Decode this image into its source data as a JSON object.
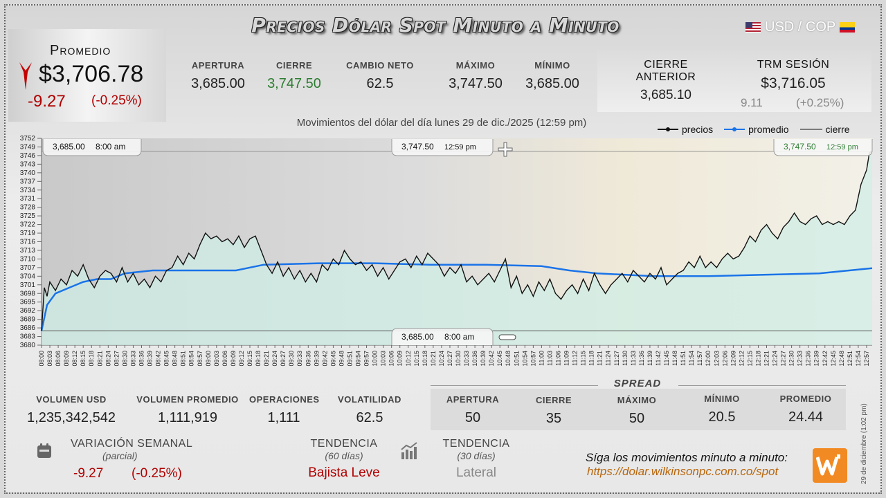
{
  "header": {
    "title": "Precios Dólar Spot Minuto a Minuto",
    "pair": "USD / COP"
  },
  "promedio": {
    "label": "Promedio",
    "value": "$3,706.78",
    "change": "-9.27",
    "change_pct": "(-0.25%)"
  },
  "stats": {
    "apertura": {
      "label": "APERTURA",
      "value": "3,685.00"
    },
    "cierre": {
      "label": "CIERRE",
      "value": "3,747.50"
    },
    "cambio_neto": {
      "label": "CAMBIO NETO",
      "value": "62.5"
    },
    "maximo": {
      "label": "MÁXIMO",
      "value": "3,747.50"
    },
    "minimo": {
      "label": "MÍNIMO",
      "value": "3,685.00"
    },
    "cierre_anterior": {
      "label": "CIERRE ANTERIOR",
      "value": "3,685.10"
    },
    "trm": {
      "label": "TRM SESIÓN",
      "value": "$3,716.05",
      "change": "9.11",
      "change_pct": "(+0.25%)"
    }
  },
  "chart_data": {
    "type": "line",
    "title": "Movimientos del dólar del día lunes 29 de dic./2025 (12:59 pm)",
    "legend": [
      "precios",
      "promedio",
      "cierre"
    ],
    "legend_position": "top-right",
    "ylim": [
      3680,
      3752
    ],
    "yticks": [
      3680,
      3683,
      3686,
      3689,
      3692,
      3695,
      3698,
      3701,
      3704,
      3707,
      3710,
      3713,
      3716,
      3719,
      3722,
      3725,
      3728,
      3731,
      3734,
      3737,
      3740,
      3743,
      3746,
      3749,
      3752
    ],
    "xticks": [
      "08:00",
      "08:03",
      "08:06",
      "08:09",
      "08:12",
      "08:15",
      "08:18",
      "08:21",
      "08:24",
      "08:27",
      "08:30",
      "08:33",
      "08:36",
      "08:39",
      "08:42",
      "08:45",
      "08:48",
      "08:51",
      "08:54",
      "08:57",
      "09:00",
      "09:03",
      "09:06",
      "09:09",
      "09:12",
      "09:15",
      "09:18",
      "09:21",
      "09:24",
      "09:27",
      "09:30",
      "09:33",
      "09:36",
      "09:39",
      "09:42",
      "09:45",
      "09:48",
      "09:51",
      "09:54",
      "09:57",
      "10:00",
      "10:03",
      "10:06",
      "10:09",
      "10:12",
      "10:15",
      "10:18",
      "10:21",
      "10:24",
      "10:27",
      "10:30",
      "10:33",
      "10:36",
      "10:39",
      "10:42",
      "10:45",
      "10:48",
      "10:51",
      "10:54",
      "10:57",
      "11:00",
      "11:03",
      "11:06",
      "11:09",
      "11:12",
      "11:15",
      "11:18",
      "11:21",
      "11:24",
      "11:27",
      "11:30",
      "11:33",
      "11:36",
      "11:39",
      "11:42",
      "11:45",
      "11:48",
      "11:51",
      "11:54",
      "11:57",
      "12:00",
      "12:03",
      "12:06",
      "12:09",
      "12:12",
      "12:15",
      "12:18",
      "12:21",
      "12:24",
      "12:27",
      "12:30",
      "12:33",
      "12:36",
      "12:39",
      "12:42",
      "12:45",
      "12:48",
      "12:51",
      "12:54",
      "12:57"
    ],
    "x_start_min": 0,
    "x_end_min": 299,
    "series": [
      {
        "name": "precios",
        "color": "#111111",
        "points": [
          [
            0,
            3685
          ],
          [
            1,
            3700
          ],
          [
            2,
            3697
          ],
          [
            3,
            3702
          ],
          [
            5,
            3699
          ],
          [
            7,
            3703
          ],
          [
            9,
            3701
          ],
          [
            11,
            3706
          ],
          [
            13,
            3704
          ],
          [
            15,
            3708
          ],
          [
            17,
            3703
          ],
          [
            19,
            3700
          ],
          [
            21,
            3704
          ],
          [
            23,
            3706
          ],
          [
            25,
            3705
          ],
          [
            27,
            3702
          ],
          [
            29,
            3707
          ],
          [
            31,
            3702
          ],
          [
            33,
            3705
          ],
          [
            35,
            3701
          ],
          [
            37,
            3703
          ],
          [
            39,
            3700
          ],
          [
            41,
            3704
          ],
          [
            43,
            3702
          ],
          [
            45,
            3706
          ],
          [
            47,
            3707
          ],
          [
            49,
            3711
          ],
          [
            51,
            3708
          ],
          [
            53,
            3712
          ],
          [
            55,
            3710
          ],
          [
            57,
            3715
          ],
          [
            59,
            3719
          ],
          [
            61,
            3717
          ],
          [
            63,
            3718
          ],
          [
            65,
            3716
          ],
          [
            67,
            3717
          ],
          [
            69,
            3715
          ],
          [
            71,
            3718
          ],
          [
            73,
            3714
          ],
          [
            75,
            3717
          ],
          [
            77,
            3718
          ],
          [
            79,
            3713
          ],
          [
            81,
            3708
          ],
          [
            83,
            3705
          ],
          [
            85,
            3709
          ],
          [
            87,
            3704
          ],
          [
            89,
            3707
          ],
          [
            91,
            3703
          ],
          [
            93,
            3706
          ],
          [
            95,
            3702
          ],
          [
            97,
            3705
          ],
          [
            99,
            3702
          ],
          [
            101,
            3708
          ],
          [
            103,
            3706
          ],
          [
            105,
            3710
          ],
          [
            107,
            3708
          ],
          [
            109,
            3713
          ],
          [
            111,
            3710
          ],
          [
            113,
            3708
          ],
          [
            115,
            3709
          ],
          [
            117,
            3706
          ],
          [
            119,
            3708
          ],
          [
            121,
            3704
          ],
          [
            123,
            3707
          ],
          [
            125,
            3703
          ],
          [
            127,
            3706
          ],
          [
            129,
            3709
          ],
          [
            131,
            3710
          ],
          [
            133,
            3707
          ],
          [
            135,
            3711
          ],
          [
            137,
            3708
          ],
          [
            139,
            3712
          ],
          [
            141,
            3710
          ],
          [
            143,
            3708
          ],
          [
            145,
            3704
          ],
          [
            147,
            3707
          ],
          [
            149,
            3705
          ],
          [
            151,
            3708
          ],
          [
            153,
            3702
          ],
          [
            155,
            3704
          ],
          [
            157,
            3701
          ],
          [
            159,
            3703
          ],
          [
            161,
            3705
          ],
          [
            163,
            3702
          ],
          [
            165,
            3706
          ],
          [
            167,
            3710
          ],
          [
            169,
            3700
          ],
          [
            171,
            3704
          ],
          [
            173,
            3698
          ],
          [
            175,
            3701
          ],
          [
            177,
            3697
          ],
          [
            179,
            3702
          ],
          [
            181,
            3699
          ],
          [
            183,
            3703
          ],
          [
            185,
            3698
          ],
          [
            187,
            3696
          ],
          [
            189,
            3699
          ],
          [
            191,
            3701
          ],
          [
            193,
            3698
          ],
          [
            195,
            3703
          ],
          [
            197,
            3699
          ],
          [
            199,
            3705
          ],
          [
            201,
            3701
          ],
          [
            203,
            3698
          ],
          [
            205,
            3701
          ],
          [
            207,
            3703
          ],
          [
            209,
            3705
          ],
          [
            211,
            3702
          ],
          [
            213,
            3706
          ],
          [
            215,
            3704
          ],
          [
            217,
            3702
          ],
          [
            219,
            3705
          ],
          [
            221,
            3703
          ],
          [
            223,
            3707
          ],
          [
            225,
            3701
          ],
          [
            227,
            3703
          ],
          [
            229,
            3705
          ],
          [
            231,
            3706
          ],
          [
            233,
            3709
          ],
          [
            235,
            3707
          ],
          [
            237,
            3711
          ],
          [
            239,
            3707
          ],
          [
            241,
            3709
          ],
          [
            243,
            3707
          ],
          [
            245,
            3710
          ],
          [
            247,
            3712
          ],
          [
            249,
            3710
          ],
          [
            251,
            3711
          ],
          [
            253,
            3714
          ],
          [
            255,
            3718
          ],
          [
            257,
            3716
          ],
          [
            259,
            3720
          ],
          [
            261,
            3722
          ],
          [
            263,
            3719
          ],
          [
            265,
            3717
          ],
          [
            267,
            3721
          ],
          [
            269,
            3723
          ],
          [
            271,
            3726
          ],
          [
            273,
            3723
          ],
          [
            275,
            3722
          ],
          [
            277,
            3724
          ],
          [
            279,
            3725
          ],
          [
            281,
            3722
          ],
          [
            283,
            3723
          ],
          [
            285,
            3722
          ],
          [
            287,
            3723
          ],
          [
            289,
            3722
          ],
          [
            291,
            3725
          ],
          [
            293,
            3727
          ],
          [
            295,
            3736
          ],
          [
            297,
            3741
          ],
          [
            298,
            3747
          ],
          [
            299,
            3747.5
          ]
        ]
      },
      {
        "name": "promedio",
        "color": "#1a73e8",
        "points": [
          [
            0,
            3685
          ],
          [
            2,
            3694
          ],
          [
            5,
            3698
          ],
          [
            10,
            3700
          ],
          [
            15,
            3702
          ],
          [
            20,
            3703
          ],
          [
            25,
            3703
          ],
          [
            30,
            3705
          ],
          [
            40,
            3706
          ],
          [
            50,
            3706
          ],
          [
            60,
            3706
          ],
          [
            70,
            3706
          ],
          [
            80,
            3708
          ],
          [
            100,
            3708.5
          ],
          [
            120,
            3708.5
          ],
          [
            140,
            3708
          ],
          [
            160,
            3708
          ],
          [
            180,
            3707.5
          ],
          [
            190,
            3706
          ],
          [
            200,
            3705
          ],
          [
            220,
            3704
          ],
          [
            240,
            3704
          ],
          [
            260,
            3704.5
          ],
          [
            280,
            3705
          ],
          [
            299,
            3706.8
          ]
        ]
      }
    ],
    "cierre_value": 3685,
    "annotations": [
      {
        "text": "3,685.00",
        "time": "8:00 am"
      },
      {
        "text": "3,747.50",
        "time": "12:59 pm"
      },
      {
        "text": "3,747.50",
        "time": "12:59 pm"
      },
      {
        "text": "3,685.00",
        "time": "8:00 am"
      }
    ]
  },
  "bottom": {
    "volumen_usd": {
      "label": "VOLUMEN USD",
      "value": "1,235,342,542"
    },
    "volumen_promedio": {
      "label": "VOLUMEN PROMEDIO",
      "value": "1,111,919"
    },
    "operaciones": {
      "label": "OPERACIONES",
      "value": "1,111"
    },
    "volatilidad": {
      "label": "VOLATILIDAD",
      "value": "62.5"
    }
  },
  "spread": {
    "title": "SPREAD",
    "apertura": {
      "label": "APERTURA",
      "value": "50"
    },
    "cierre": {
      "label": "CIERRE",
      "value": "35"
    },
    "maximo": {
      "label": "MÁXIMO",
      "value": "50"
    },
    "minimo": {
      "label": "MÍNIMO",
      "value": "20.5"
    },
    "promedio": {
      "label": "PROMEDIO",
      "value": "24.44"
    }
  },
  "variacion": {
    "label": "VARIACIÓN SEMANAL",
    "sub": "(parcial)",
    "value": "-9.27",
    "pct": "(-0.25%)"
  },
  "tendencia60": {
    "label": "TENDENCIA",
    "sub": "(60 días)",
    "value": "Bajista Leve"
  },
  "tendencia30": {
    "label": "TENDENCIA",
    "sub": "(30 días)",
    "value": "Lateral"
  },
  "promo": {
    "text": "Síga los movimientos minuto a minuto:",
    "url": "https://dolar.wilkinsonpc.com.co/spot"
  },
  "side_date": "29 de diciembre (1:02 pm)"
}
